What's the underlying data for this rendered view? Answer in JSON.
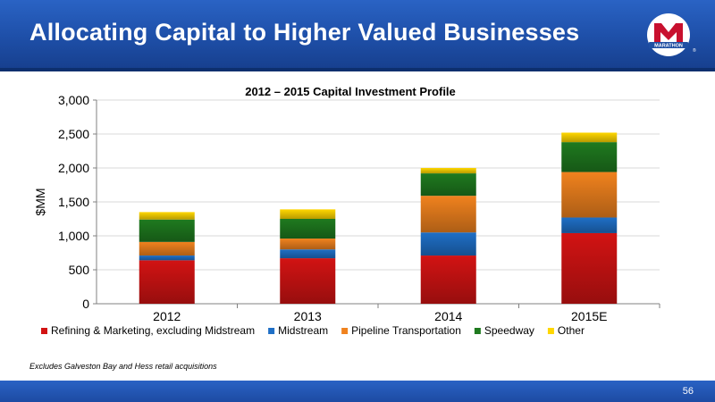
{
  "slide": {
    "title": "Allocating Capital to Higher Valued Businesses",
    "logo_text": "MARATHON",
    "footnote": "Excludes Galveston Bay and Hess retail acquisitions",
    "page_number": "56"
  },
  "colors": {
    "header_blue": "#1e4fa8",
    "brand_red": "#c8102e"
  },
  "chart_data": {
    "type": "bar",
    "stacked": true,
    "title": "2012 – 2015 Capital Investment Profile",
    "xlabel": "",
    "ylabel": "$MM",
    "ylim": [
      0,
      3000
    ],
    "yticks": [
      0,
      500,
      1000,
      1500,
      2000,
      2500,
      3000
    ],
    "ytick_labels": [
      "0",
      "500",
      "1,000",
      "1,500",
      "2,000",
      "2,500",
      "3,000"
    ],
    "grid": true,
    "legend_position": "bottom",
    "categories": [
      "2012",
      "2013",
      "2014",
      "2015E"
    ],
    "series": [
      {
        "name": "Refining & Marketing, excluding Midstream",
        "color": "#d21313",
        "values": [
          640,
          670,
          710,
          1040
        ]
      },
      {
        "name": "Midstream",
        "color": "#1f6fc6",
        "values": [
          70,
          130,
          340,
          230
        ]
      },
      {
        "name": "Pipeline Transportation",
        "color": "#f0821e",
        "values": [
          200,
          160,
          540,
          670
        ]
      },
      {
        "name": "Speedway",
        "color": "#1f7a1f",
        "values": [
          330,
          290,
          330,
          440
        ]
      },
      {
        "name": "Other",
        "color": "#ffd700",
        "values": [
          110,
          140,
          80,
          140
        ]
      }
    ]
  }
}
